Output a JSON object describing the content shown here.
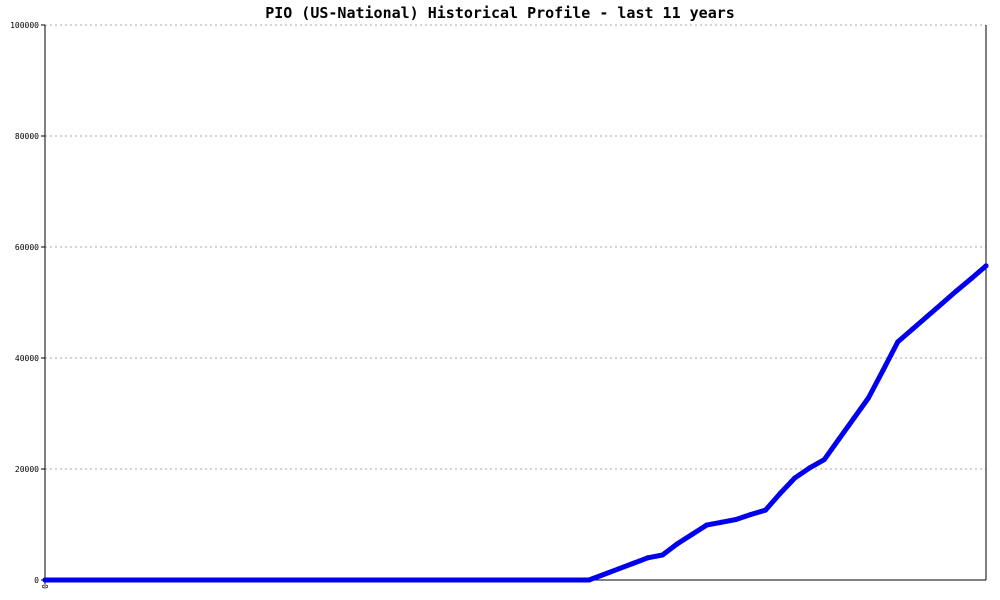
{
  "chart_data": {
    "type": "line",
    "title": "PIO (US-National) Historical Profile - last 11 years",
    "xlabel": "",
    "ylabel": "",
    "ylim": [
      0,
      100000
    ],
    "yticks": [
      "0",
      "20000",
      "40000",
      "60000",
      "80000",
      "100000"
    ],
    "xticks": [
      "0"
    ],
    "grid": true,
    "line_color": "#0000ee",
    "series": [
      {
        "values": [
          0,
          0,
          0,
          0,
          0,
          0,
          0,
          0,
          0,
          0,
          0,
          0,
          0,
          0,
          0,
          0,
          0,
          0,
          0,
          0,
          0,
          0,
          0,
          0,
          0,
          0,
          0,
          0,
          0,
          0,
          0,
          0,
          0,
          0,
          0,
          0,
          0,
          0,
          1000,
          2000,
          3000,
          4000,
          4500,
          6500,
          8200,
          9900,
          10400,
          10900,
          11800,
          12600,
          15600,
          18400,
          20200,
          21700,
          25400,
          29100,
          32800,
          37800,
          42900,
          45200,
          47500,
          49800,
          52100,
          54300,
          56600
        ]
      }
    ]
  }
}
